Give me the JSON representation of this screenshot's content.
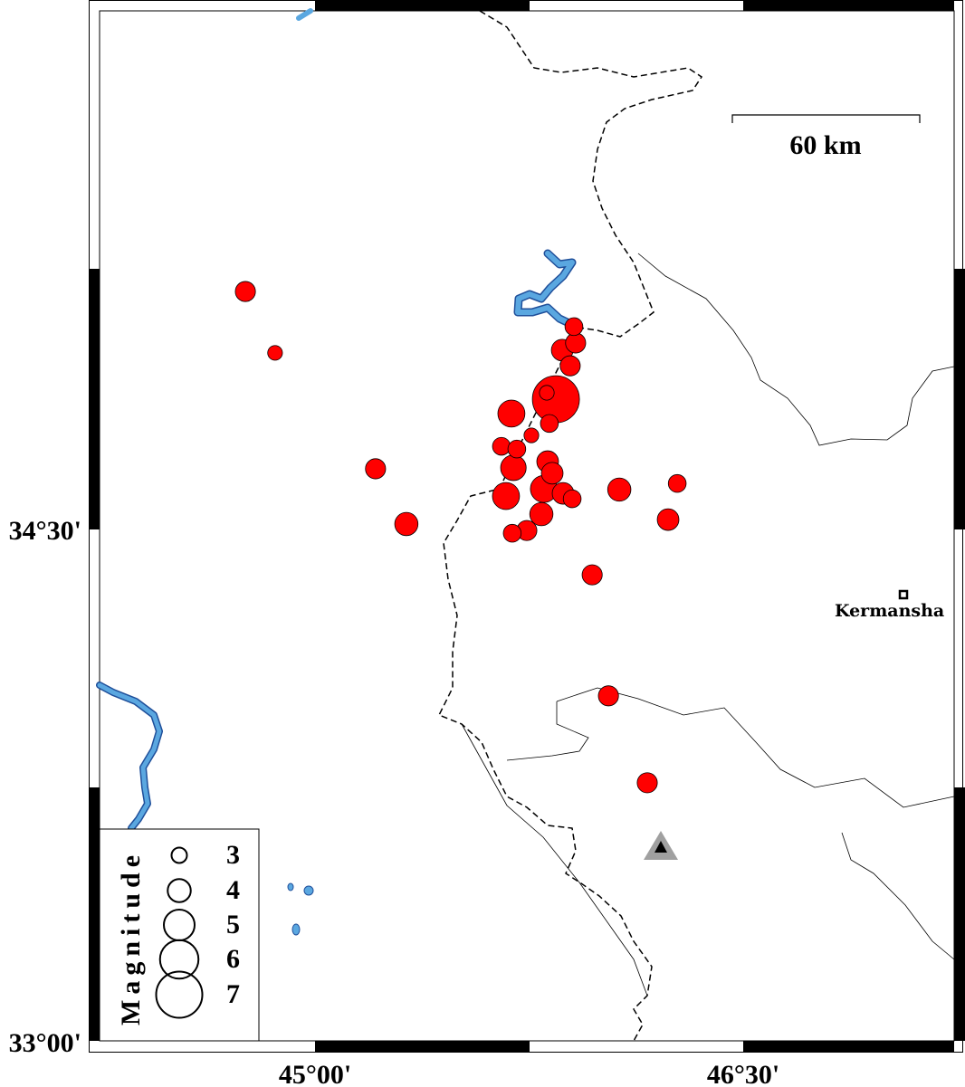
{
  "map": {
    "axes": {
      "x_ticks": [
        {
          "lon": 45.0,
          "label": "45°00'"
        },
        {
          "lon": 46.5,
          "label": "46°30'"
        }
      ],
      "y_ticks": [
        {
          "lat": 34.5,
          "label": "34°30'"
        },
        {
          "lat": 33.0,
          "label": "33°00'"
        }
      ]
    },
    "scale_bar": {
      "label": "60 km"
    },
    "city": {
      "name": "Kermansha",
      "lon": 47.062,
      "lat": 34.309
    },
    "station": {
      "symbol": "triangle",
      "lon": 46.212,
      "lat": 33.563
    },
    "colors": {
      "event_fill": "#ff0000",
      "water": "#5aa7e0",
      "station": "#a0a0a0"
    },
    "legend": {
      "title": "Magnitude",
      "entries": [
        {
          "label": "3",
          "mag": 3
        },
        {
          "label": "4",
          "mag": 4
        },
        {
          "label": "5",
          "mag": 5
        },
        {
          "label": "6",
          "mag": 6
        },
        {
          "label": "7",
          "mag": 7
        }
      ]
    },
    "events": [
      {
        "lon": 44.756,
        "lat": 35.198,
        "mag": 3.5
      },
      {
        "lon": 44.86,
        "lat": 35.018,
        "mag": 2.8
      },
      {
        "lon": 45.907,
        "lat": 35.095,
        "mag": 3.2
      },
      {
        "lon": 45.913,
        "lat": 35.047,
        "mag": 3.5
      },
      {
        "lon": 45.866,
        "lat": 35.026,
        "mag": 3.7
      },
      {
        "lon": 45.894,
        "lat": 34.98,
        "mag": 3.5
      },
      {
        "lon": 45.844,
        "lat": 34.882,
        "mag": 7.0
      },
      {
        "lon": 45.812,
        "lat": 34.901,
        "mag": 2.8
      },
      {
        "lon": 45.688,
        "lat": 34.84,
        "mag": 4.4
      },
      {
        "lon": 45.821,
        "lat": 34.811,
        "mag": 3.2
      },
      {
        "lon": 45.758,
        "lat": 34.776,
        "mag": 2.8
      },
      {
        "lon": 45.653,
        "lat": 34.744,
        "mag": 3.2
      },
      {
        "lon": 45.707,
        "lat": 34.736,
        "mag": 3.2
      },
      {
        "lon": 45.212,
        "lat": 34.678,
        "mag": 3.5
      },
      {
        "lon": 45.815,
        "lat": 34.699,
        "mag": 3.7
      },
      {
        "lon": 45.695,
        "lat": 34.681,
        "mag": 4.2
      },
      {
        "lon": 45.831,
        "lat": 34.665,
        "mag": 3.7
      },
      {
        "lon": 45.669,
        "lat": 34.598,
        "mag": 4.4
      },
      {
        "lon": 45.802,
        "lat": 34.619,
        "mag": 4.4
      },
      {
        "lon": 45.869,
        "lat": 34.606,
        "mag": 3.7
      },
      {
        "lon": 45.901,
        "lat": 34.59,
        "mag": 3.2
      },
      {
        "lon": 46.066,
        "lat": 34.617,
        "mag": 3.9
      },
      {
        "lon": 46.269,
        "lat": 34.635,
        "mag": 3.2
      },
      {
        "lon": 45.793,
        "lat": 34.545,
        "mag": 3.9
      },
      {
        "lon": 45.32,
        "lat": 34.516,
        "mag": 3.9
      },
      {
        "lon": 46.237,
        "lat": 34.529,
        "mag": 3.7
      },
      {
        "lon": 45.742,
        "lat": 34.497,
        "mag": 3.5
      },
      {
        "lon": 45.691,
        "lat": 34.489,
        "mag": 3.2
      },
      {
        "lon": 45.971,
        "lat": 34.367,
        "mag": 3.5
      },
      {
        "lon": 46.028,
        "lat": 34.012,
        "mag": 3.5
      },
      {
        "lon": 46.164,
        "lat": 33.757,
        "mag": 3.5
      }
    ]
  }
}
